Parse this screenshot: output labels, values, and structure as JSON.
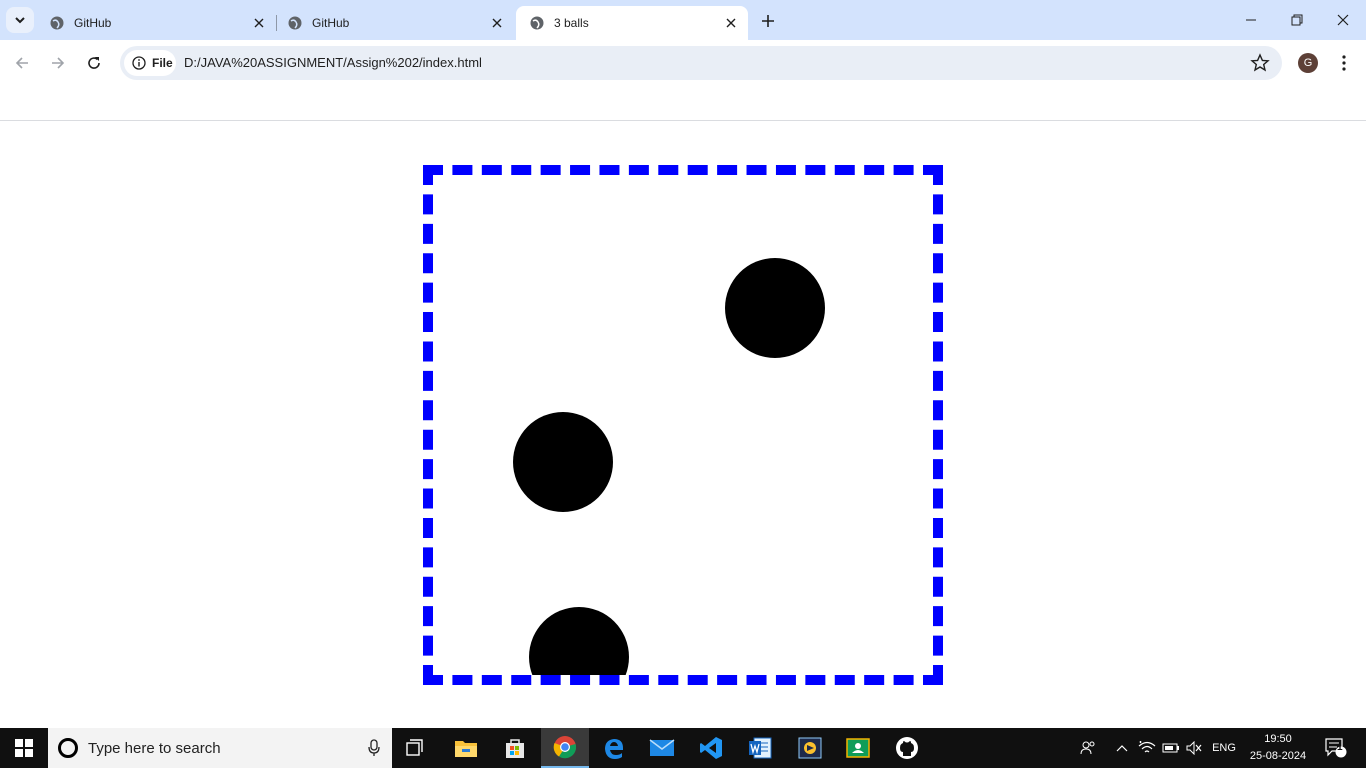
{
  "browser": {
    "tabs": [
      {
        "title": "GitHub",
        "active": false
      },
      {
        "title": "GitHub",
        "active": false
      },
      {
        "title": "3 balls",
        "active": true
      }
    ],
    "address": {
      "chip_label": "File",
      "url": "D:/JAVA%20ASSIGNMENT/Assign%202/index.html"
    },
    "profile_initial": "G"
  },
  "page": {
    "box_border_color": "#0000ff",
    "ball_color": "#000000",
    "balls_count": 3
  },
  "taskbar": {
    "search_placeholder": "Type here to search",
    "language": "ENG",
    "time": "19:50",
    "date": "25-08-2024",
    "notification_count": "1",
    "apps": [
      "task-view-icon",
      "file-explorer-icon",
      "microsoft-store-icon",
      "chrome-icon",
      "edge-icon",
      "mail-icon",
      "vscode-icon",
      "word-icon",
      "photos-icon",
      "google-classroom-icon",
      "github-desktop-icon"
    ]
  }
}
